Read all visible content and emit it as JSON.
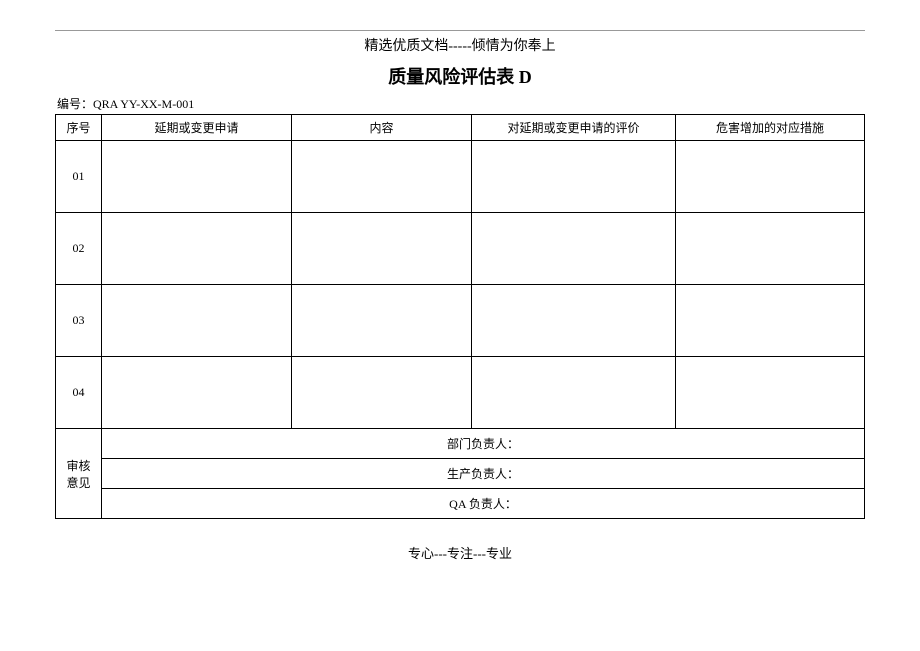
{
  "header": "精选优质文档-----倾情为你奉上",
  "title": "质量风险评估表 D",
  "serial_label": "编号：QRA YY-XX-M-001",
  "columns": {
    "seq": "序号",
    "request": "延期或变更申请",
    "content": "内容",
    "eval": "对延期或变更申请的评价",
    "measure": "危害增加的对应措施"
  },
  "rows": [
    {
      "seq": "01",
      "request": "",
      "content": "",
      "eval": "",
      "measure": ""
    },
    {
      "seq": "02",
      "request": "",
      "content": "",
      "eval": "",
      "measure": ""
    },
    {
      "seq": "03",
      "request": "",
      "content": "",
      "eval": "",
      "measure": ""
    },
    {
      "seq": "04",
      "request": "",
      "content": "",
      "eval": "",
      "measure": ""
    }
  ],
  "review_label": "审核\n意见",
  "review_lines": {
    "dept": "部门负责人：",
    "prod": "生产负责人：",
    "qa": "QA 负责人："
  },
  "footer": "专心---专注---专业"
}
